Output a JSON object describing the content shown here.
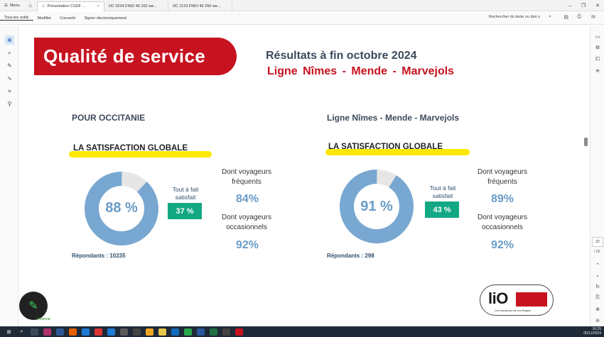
{
  "browser": {
    "menu_label": "Menu",
    "tabs": [
      {
        "label": "Présentation CSDF ...",
        "active": true
      },
      {
        "label": "OC 0224 FNIO 46 262 we...",
        "active": false
      },
      {
        "label": "OC 1123 FNIO 46 250 we...",
        "active": false
      }
    ]
  },
  "toolbar": {
    "items": [
      "Tous les outils",
      "Modifier",
      "Convertir",
      "Signer électroniquement"
    ],
    "search_placeholder": "Rechercher du texte ou des o"
  },
  "page_nav": {
    "current": "22",
    "total": "/ 26"
  },
  "slide": {
    "title": "Qualité de service",
    "subtitle": "Résultats à fin octobre 2024",
    "line_title": "Ligne  Nîmes - Mende - Marvejols",
    "accent_color": "#c7121f",
    "left": {
      "heading": "POUR OCCITANIE",
      "satisfaction_label": "LA SATISFACTION GLOBALE",
      "global_pct": 88,
      "global_text": "88 %",
      "ok_label": "Tout à fait satisfait",
      "ok_value": "37 %",
      "frequent_label": "Dont voyageurs fréquents",
      "frequent_value": "84%",
      "occasional_label": "Dont voyageurs occasionnels",
      "occasional_value": "92%",
      "respondents": "Répondants : 10235"
    },
    "right": {
      "heading": "Ligne Nîmes - Mende - Marvejols",
      "satisfaction_label": "LA SATISFACTION GLOBALE",
      "global_pct": 91,
      "global_text": "91 %",
      "ok_label": "Tout à fait satisfait",
      "ok_value": "43 %",
      "frequent_label": "Dont voyageurs fréquents",
      "frequent_value": "89%",
      "occasional_label": "Dont voyageurs occasionnels",
      "occasional_value": "92%",
      "respondents": "Répondants : 298"
    },
    "logo": {
      "brand": "liO",
      "tagline": "Les transports de ma Région"
    }
  },
  "fab_label": "Externe",
  "taskbar": {
    "time": "16:25",
    "date": "05/11/2024"
  }
}
